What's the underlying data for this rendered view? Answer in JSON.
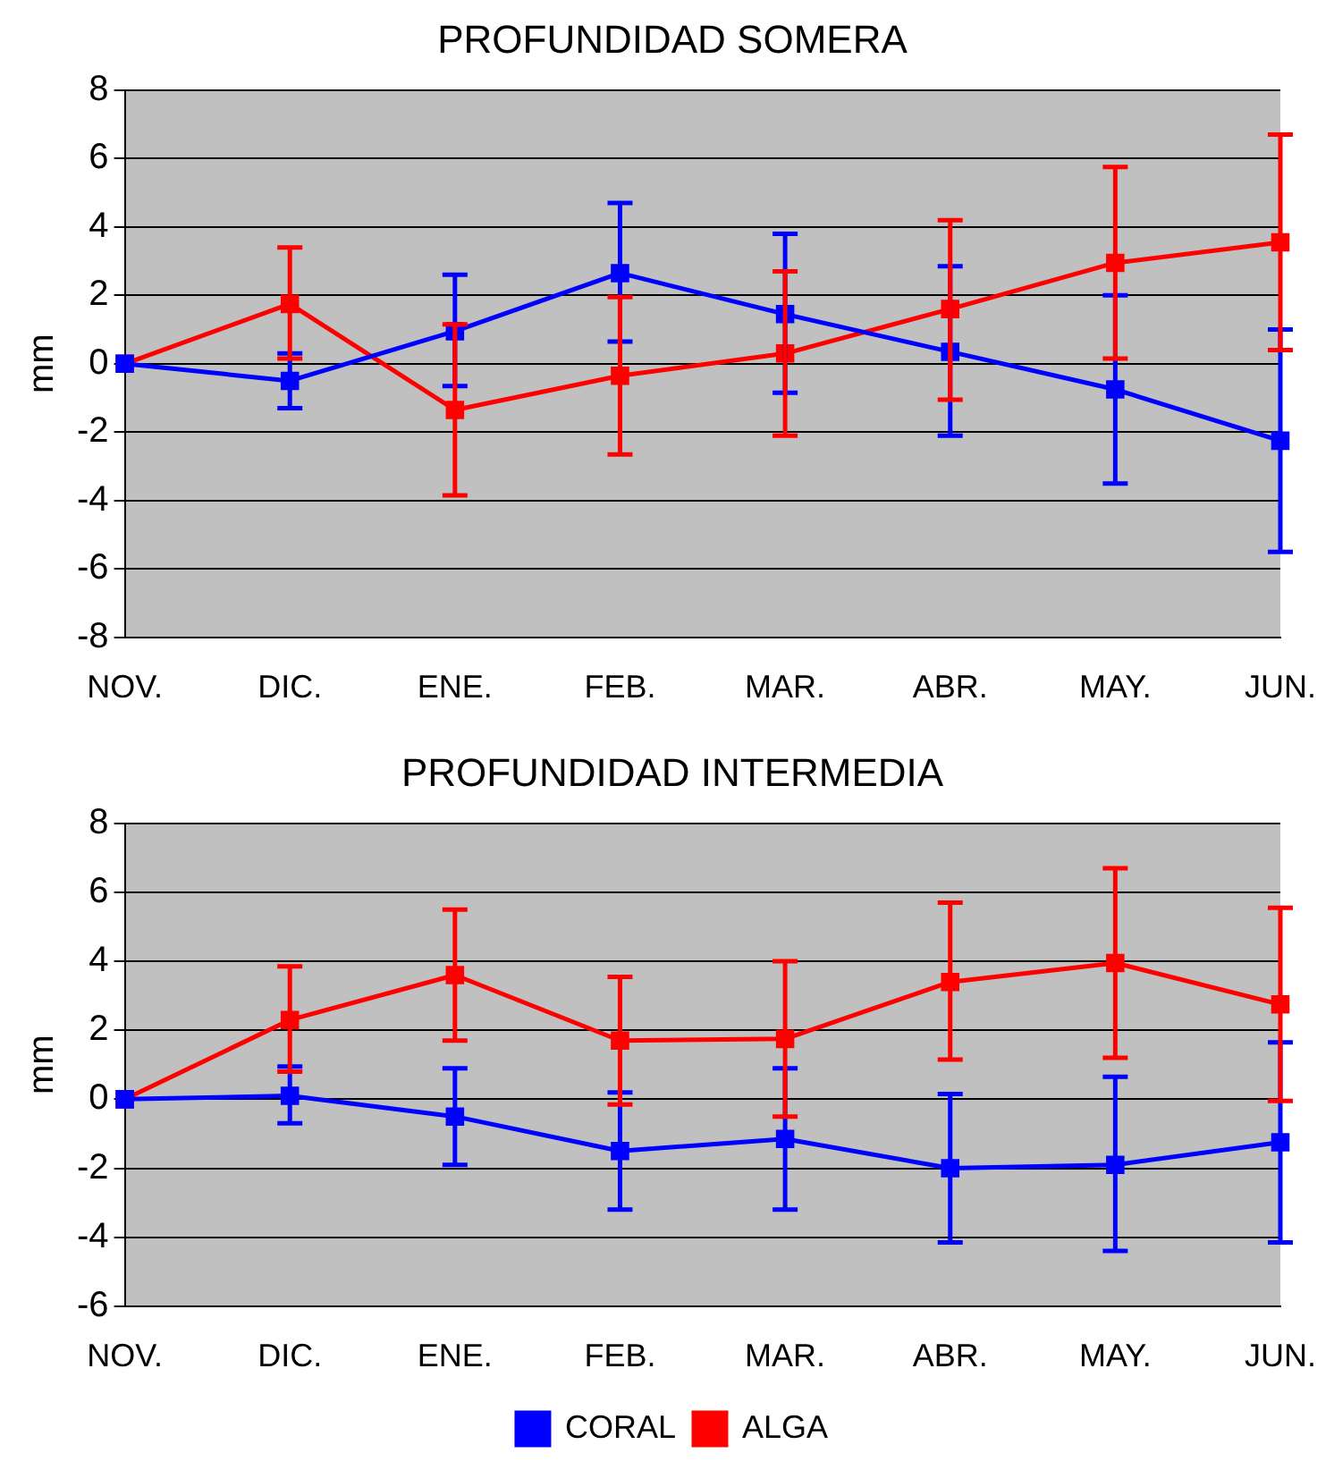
{
  "chart_data": [
    {
      "type": "line",
      "title": "PROFUNDIDAD SOMERA",
      "ylabel": "mm",
      "categories": [
        "NOV.",
        "DIC.",
        "ENE.",
        "FEB.",
        "MAR.",
        "ABR.",
        "MAY.",
        "JUN."
      ],
      "series": [
        {
          "color": "#0000ff",
          "values": [
            0,
            -0.5,
            0.95,
            2.65,
            1.45,
            0.35,
            -0.75,
            -2.25
          ],
          "errors": [
            null,
            [
              -1.3,
              0.3
            ],
            [
              -0.65,
              2.6
            ],
            [
              0.65,
              4.7
            ],
            [
              -0.85,
              3.8
            ],
            [
              -2.1,
              2.85
            ],
            [
              -3.5,
              2.0
            ],
            [
              -5.5,
              1.0
            ]
          ]
        },
        {
          "color": "#ff0000",
          "values": [
            0,
            1.75,
            -1.35,
            -0.35,
            0.3,
            1.6,
            2.95,
            3.55
          ],
          "errors": [
            null,
            [
              0.15,
              3.4
            ],
            [
              -3.85,
              1.15
            ],
            [
              -2.65,
              1.95
            ],
            [
              -2.1,
              2.7
            ],
            [
              -1.05,
              4.2
            ],
            [
              0.15,
              5.75
            ],
            [
              0.4,
              6.7
            ]
          ]
        }
      ],
      "ylim": [
        -8,
        8
      ],
      "yticks": [
        -8,
        -6,
        -4,
        -2,
        0,
        2,
        4,
        6,
        8
      ],
      "grid": "y",
      "marker": "square",
      "line_style": "solid"
    },
    {
      "type": "line",
      "title": "PROFUNDIDAD INTERMEDIA",
      "ylabel": "mm",
      "categories": [
        "NOV.",
        "DIC.",
        "ENE.",
        "FEB.",
        "MAR.",
        "ABR.",
        "MAY.",
        "JUN."
      ],
      "series": [
        {
          "name": "CORAL",
          "color": "#0000ff",
          "values": [
            0,
            0.1,
            -0.5,
            -1.5,
            -1.15,
            -2.0,
            -1.9,
            -1.25
          ],
          "errors": [
            null,
            [
              -0.7,
              0.95
            ],
            [
              -1.9,
              0.9
            ],
            [
              -3.2,
              0.2
            ],
            [
              -3.2,
              0.9
            ],
            [
              -4.15,
              0.15
            ],
            [
              -4.4,
              0.65
            ],
            [
              -4.15,
              1.65
            ]
          ]
        },
        {
          "name": "ALGA",
          "color": "#ff0000",
          "values": [
            0,
            2.3,
            3.6,
            1.7,
            1.75,
            3.4,
            3.95,
            2.75
          ],
          "errors": [
            null,
            [
              0.8,
              3.85
            ],
            [
              1.7,
              5.5
            ],
            [
              -0.15,
              3.55
            ],
            [
              -0.5,
              4.0
            ],
            [
              1.15,
              5.7
            ],
            [
              1.2,
              6.7
            ],
            [
              -0.05,
              5.55
            ]
          ]
        }
      ],
      "ylim": [
        -6,
        8
      ],
      "yticks": [
        -6,
        -4,
        -2,
        0,
        2,
        4,
        6,
        8
      ],
      "grid": "y",
      "legend": "bottom",
      "marker": "square",
      "line_style": "solid"
    }
  ]
}
